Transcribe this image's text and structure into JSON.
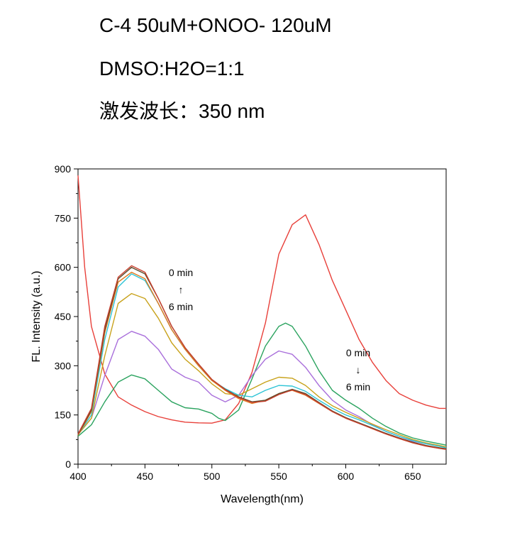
{
  "header": {
    "line1": "C-4 50uM+ONOO- 120uM",
    "line2": "DMSO:H2O=1:1",
    "line3": "激发波长：350 nm"
  },
  "chart_data": {
    "type": "line",
    "title": "",
    "xlabel": "Wavelength(nm)",
    "ylabel": "FL. Intensity (a.u.)",
    "xlim": [
      400,
      675
    ],
    "ylim": [
      0,
      900
    ],
    "xticks": [
      400,
      450,
      500,
      550,
      600,
      650
    ],
    "yticks": [
      0,
      150,
      300,
      450,
      600,
      750,
      900
    ],
    "grid": false,
    "legend": "none",
    "annotations": [
      {
        "lines": [
          "0 min",
          "↑",
          "6 min"
        ],
        "near": "left peak"
      },
      {
        "lines": [
          "0 min",
          "↓",
          "6 min"
        ],
        "near": "right peak"
      }
    ],
    "series": [
      {
        "color": "#e8403a",
        "x": [
          400,
          405,
          410,
          420,
          430,
          440,
          450,
          460,
          470,
          480,
          490,
          500,
          510,
          520,
          530,
          540,
          550,
          560,
          570,
          580,
          590,
          600,
          610,
          620,
          630,
          640,
          650,
          660,
          670,
          675
        ],
        "y": [
          880,
          600,
          420,
          275,
          205,
          180,
          160,
          145,
          135,
          128,
          126,
          125,
          135,
          185,
          280,
          430,
          640,
          730,
          760,
          670,
          560,
          470,
          380,
          310,
          255,
          215,
          195,
          180,
          170,
          170
        ]
      },
      {
        "color": "#2ba35f",
        "x": [
          400,
          410,
          420,
          430,
          440,
          450,
          460,
          470,
          480,
          490,
          500,
          505,
          510,
          520,
          530,
          540,
          550,
          555,
          560,
          570,
          580,
          590,
          600,
          610,
          620,
          630,
          640,
          650,
          660,
          670,
          675
        ],
        "y": [
          85,
          120,
          190,
          250,
          272,
          260,
          225,
          190,
          172,
          168,
          155,
          140,
          133,
          165,
          260,
          360,
          420,
          430,
          420,
          360,
          285,
          225,
          195,
          170,
          140,
          115,
          95,
          80,
          70,
          62,
          58
        ]
      },
      {
        "color": "#a96fdb",
        "x": [
          400,
          410,
          420,
          430,
          440,
          450,
          460,
          470,
          480,
          490,
          500,
          510,
          520,
          530,
          540,
          550,
          560,
          570,
          580,
          590,
          600,
          610,
          620,
          630,
          640,
          650,
          660,
          670,
          675
        ],
        "y": [
          90,
          140,
          270,
          380,
          405,
          390,
          350,
          290,
          265,
          250,
          210,
          190,
          210,
          270,
          320,
          345,
          335,
          295,
          240,
          195,
          165,
          145,
          120,
          100,
          85,
          70,
          62,
          55,
          52
        ]
      },
      {
        "color": "#c8a21b",
        "x": [
          400,
          410,
          420,
          430,
          440,
          450,
          460,
          470,
          480,
          490,
          500,
          510,
          520,
          530,
          540,
          550,
          560,
          570,
          580,
          590,
          600,
          610,
          620,
          630,
          640,
          650,
          660,
          670,
          675
        ],
        "y": [
          90,
          140,
          330,
          490,
          520,
          505,
          445,
          370,
          320,
          285,
          245,
          215,
          210,
          230,
          250,
          265,
          262,
          240,
          205,
          178,
          158,
          140,
          122,
          105,
          90,
          75,
          65,
          57,
          53
        ]
      },
      {
        "color": "#2ec4d6",
        "x": [
          400,
          410,
          420,
          430,
          440,
          450,
          460,
          470,
          480,
          490,
          500,
          510,
          520,
          530,
          540,
          550,
          560,
          570,
          580,
          590,
          600,
          610,
          620,
          630,
          640,
          650,
          660,
          670,
          675
        ],
        "y": [
          90,
          150,
          380,
          540,
          580,
          560,
          490,
          410,
          350,
          300,
          255,
          230,
          210,
          205,
          225,
          240,
          238,
          222,
          195,
          170,
          150,
          135,
          118,
          100,
          85,
          72,
          62,
          54,
          50
        ]
      },
      {
        "color": "#e07a1f",
        "x": [
          400,
          410,
          420,
          430,
          440,
          450,
          460,
          470,
          480,
          490,
          500,
          510,
          520,
          530,
          540,
          550,
          560,
          570,
          580,
          590,
          600,
          610,
          620,
          630,
          640,
          650,
          660,
          670,
          675
        ],
        "y": [
          88,
          160,
          400,
          555,
          585,
          565,
          490,
          410,
          350,
          300,
          255,
          225,
          200,
          185,
          195,
          215,
          225,
          210,
          185,
          160,
          140,
          125,
          108,
          92,
          78,
          65,
          55,
          48,
          45
        ]
      },
      {
        "color": "#5a4a2a",
        "x": [
          400,
          410,
          420,
          430,
          440,
          450,
          460,
          470,
          480,
          490,
          500,
          510,
          520,
          530,
          540,
          550,
          560,
          570,
          580,
          590,
          600,
          610,
          620,
          630,
          640,
          650,
          660,
          670,
          675
        ],
        "y": [
          90,
          165,
          410,
          565,
          600,
          580,
          505,
          420,
          355,
          305,
          258,
          228,
          205,
          190,
          195,
          215,
          228,
          215,
          188,
          162,
          142,
          126,
          110,
          94,
          80,
          67,
          57,
          50,
          47
        ]
      },
      {
        "color": "#c9402f",
        "x": [
          400,
          410,
          420,
          430,
          440,
          450,
          460,
          470,
          480,
          490,
          500,
          510,
          520,
          530,
          540,
          550,
          560,
          570,
          580,
          590,
          600,
          610,
          620,
          630,
          640,
          650,
          660,
          670,
          675
        ],
        "y": [
          92,
          170,
          420,
          570,
          605,
          585,
          505,
          420,
          355,
          305,
          258,
          227,
          203,
          188,
          192,
          212,
          226,
          212,
          186,
          160,
          140,
          124,
          108,
          92,
          78,
          65,
          55,
          48,
          45
        ]
      }
    ]
  }
}
